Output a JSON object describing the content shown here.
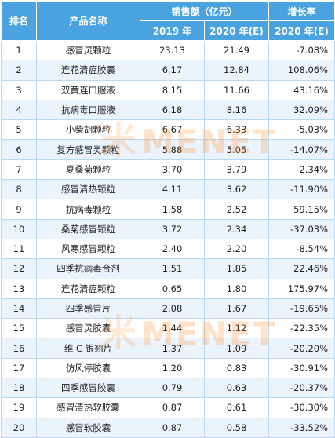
{
  "header": {
    "rank": "排名",
    "product": "产品名称",
    "sales": "销售额（亿元）",
    "growth": "增长率",
    "year2019": "2019 年",
    "year2020": "2020 年(E)",
    "growth_year": "2020 年(E)"
  },
  "rows": [
    {
      "rank": "1",
      "name": "感冒灵颗粒",
      "v2019": "23.13",
      "v2020": "21.49",
      "growth": "-7.08%"
    },
    {
      "rank": "2",
      "name": "连花清瘟胶囊",
      "v2019": "6.17",
      "v2020": "12.84",
      "growth": "108.06%"
    },
    {
      "rank": "3",
      "name": "双黄连口服液",
      "v2019": "8.15",
      "v2020": "11.66",
      "growth": "43.16%"
    },
    {
      "rank": "4",
      "name": "抗病毒口服液",
      "v2019": "6.18",
      "v2020": "8.16",
      "growth": "32.09%"
    },
    {
      "rank": "5",
      "name": "小柴胡颗粒",
      "v2019": "6.67",
      "v2020": "6.33",
      "growth": "-5.03%"
    },
    {
      "rank": "6",
      "name": "复方感冒灵颗粒",
      "v2019": "5.88",
      "v2020": "5.05",
      "growth": "-14.07%"
    },
    {
      "rank": "7",
      "name": "夏桑菊颗粒",
      "v2019": "3.70",
      "v2020": "3.79",
      "growth": "2.34%"
    },
    {
      "rank": "8",
      "name": "感冒清热颗粒",
      "v2019": "4.11",
      "v2020": "3.62",
      "growth": "-11.90%"
    },
    {
      "rank": "9",
      "name": "抗病毒颗粒",
      "v2019": "1.58",
      "v2020": "2.52",
      "growth": "59.15%"
    },
    {
      "rank": "10",
      "name": "桑菊感冒颗粒",
      "v2019": "3.72",
      "v2020": "2.34",
      "growth": "-37.03%"
    },
    {
      "rank": "11",
      "name": "风寒感冒颗粒",
      "v2019": "2.40",
      "v2020": "2.20",
      "growth": "-8.54%"
    },
    {
      "rank": "12",
      "name": "四季抗病毒合剂",
      "v2019": "1.51",
      "v2020": "1.85",
      "growth": "22.46%"
    },
    {
      "rank": "13",
      "name": "连花清瘟颗粒",
      "v2019": "0.65",
      "v2020": "1.80",
      "growth": "175.97%"
    },
    {
      "rank": "14",
      "name": "四季感冒片",
      "v2019": "2.08",
      "v2020": "1.67",
      "growth": "-19.65%"
    },
    {
      "rank": "15",
      "name": "感冒灵胶囊",
      "v2019": "1.44",
      "v2020": "1.12",
      "growth": "-22.35%"
    },
    {
      "rank": "16",
      "name": "维 C 银翘片",
      "v2019": "1.37",
      "v2020": "1.09",
      "growth": "-20.20%"
    },
    {
      "rank": "17",
      "name": "仿风停胶囊",
      "v2019": "1.20",
      "v2020": "0.83",
      "growth": "-30.91%"
    },
    {
      "rank": "18",
      "name": "四季感冒胶囊",
      "v2019": "0.79",
      "v2020": "0.63",
      "growth": "-20.37%"
    },
    {
      "rank": "19",
      "name": "感冒清热软胶囊",
      "v2019": "0.87",
      "v2020": "0.61",
      "growth": "-30.30%"
    },
    {
      "rank": "20",
      "name": "感冒软胶囊",
      "v2019": "0.87",
      "v2020": "0.58",
      "growth": "-33.52%"
    }
  ],
  "watermark": {
    "mark": "米",
    "text": "MENET"
  },
  "colors": {
    "header_bg": "#4aa2de",
    "alt_row_bg": "#ebf4fc",
    "border": "#b9d9f2",
    "watermark": "#ff983c"
  }
}
